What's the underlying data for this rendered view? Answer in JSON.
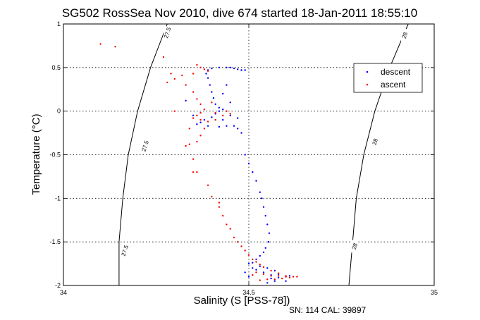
{
  "chart_data": {
    "type": "scatter",
    "title": "SG502 RossSea Nov 2010, dive 674 started 18-Jan-2011 18:55:10",
    "xlabel": "Salinity (S [PSS-78])",
    "ylabel": "Temperature (°C)",
    "xlim": [
      34,
      35
    ],
    "ylim": [
      -2,
      1
    ],
    "x_ticks": [
      34,
      34.5,
      35
    ],
    "x_tick_labels": [
      "34",
      "34.5",
      "35"
    ],
    "y_ticks": [
      -2,
      -1.5,
      -1,
      -0.5,
      0,
      0.5,
      1
    ],
    "y_tick_labels": [
      "-2",
      "-1.5",
      "-1",
      "-0.5",
      "0",
      "0.5",
      "1"
    ],
    "grid": true,
    "legend_position": "top-right",
    "footer": "SN: 114  CAL: 39897",
    "contours": [
      {
        "label": "27.5",
        "points": [
          [
            34.28,
            1.0
          ],
          [
            34.235,
            0.5
          ],
          [
            34.2,
            0.0
          ],
          [
            34.175,
            -0.5
          ],
          [
            34.16,
            -1.0
          ],
          [
            34.15,
            -1.5
          ],
          [
            34.15,
            -2.0
          ]
        ],
        "label_positions": [
          [
            34.28,
            0.9
          ],
          [
            34.22,
            -0.4
          ],
          [
            34.165,
            -1.6
          ]
        ]
      },
      {
        "label": "28",
        "points": [
          [
            34.93,
            1.0
          ],
          [
            34.88,
            0.5
          ],
          [
            34.84,
            0.0
          ],
          [
            34.81,
            -0.5
          ],
          [
            34.79,
            -1.0
          ],
          [
            34.78,
            -1.5
          ],
          [
            34.77,
            -2.0
          ]
        ],
        "label_positions": [
          [
            34.92,
            0.87
          ],
          [
            34.84,
            -0.35
          ],
          [
            34.785,
            -1.55
          ]
        ]
      }
    ],
    "series": [
      {
        "name": "descent",
        "color": "#0000ff",
        "points": [
          [
            34.44,
            0.5
          ],
          [
            34.45,
            0.5
          ],
          [
            34.46,
            0.49
          ],
          [
            34.47,
            0.48
          ],
          [
            34.48,
            0.47
          ],
          [
            34.49,
            0.47
          ],
          [
            34.42,
            0.5
          ],
          [
            34.4,
            0.49
          ],
          [
            34.39,
            0.47
          ],
          [
            34.385,
            0.43
          ],
          [
            34.39,
            0.38
          ],
          [
            34.395,
            0.3
          ],
          [
            34.4,
            0.22
          ],
          [
            34.405,
            0.15
          ],
          [
            34.41,
            0.08
          ],
          [
            34.42,
            0.04
          ],
          [
            34.43,
            0.02
          ],
          [
            34.42,
            0.0
          ],
          [
            34.41,
            -0.03
          ],
          [
            34.4,
            -0.07
          ],
          [
            34.38,
            -0.1
          ],
          [
            34.37,
            -0.13
          ],
          [
            34.39,
            -0.17
          ],
          [
            34.42,
            -0.18
          ],
          [
            34.44,
            -0.17
          ],
          [
            34.46,
            -0.17
          ],
          [
            34.47,
            -0.2
          ],
          [
            34.48,
            -0.25
          ],
          [
            34.47,
            -0.08
          ],
          [
            34.45,
            -0.05
          ],
          [
            34.43,
            -0.1
          ],
          [
            34.49,
            -0.5
          ],
          [
            34.5,
            -0.6
          ],
          [
            34.51,
            -0.7
          ],
          [
            34.52,
            -0.8
          ],
          [
            34.53,
            -0.93
          ],
          [
            34.535,
            -1.0
          ],
          [
            34.54,
            -1.1
          ],
          [
            34.545,
            -1.2
          ],
          [
            34.55,
            -1.3
          ],
          [
            34.555,
            -1.4
          ],
          [
            34.553,
            -1.5
          ],
          [
            34.545,
            -1.57
          ],
          [
            34.54,
            -1.62
          ],
          [
            34.53,
            -1.66
          ],
          [
            34.52,
            -1.7
          ],
          [
            34.51,
            -1.74
          ],
          [
            34.53,
            -1.78
          ],
          [
            34.55,
            -1.8
          ],
          [
            34.57,
            -1.83
          ],
          [
            34.58,
            -1.87
          ],
          [
            34.6,
            -1.9
          ],
          [
            34.56,
            -1.92
          ],
          [
            34.54,
            -1.85
          ],
          [
            34.57,
            -1.95
          ],
          [
            34.55,
            -1.97
          ],
          [
            34.5,
            -1.9
          ],
          [
            34.49,
            -1.85
          ],
          [
            34.5,
            -1.75
          ],
          [
            34.51,
            -1.8
          ],
          [
            34.52,
            -1.82
          ],
          [
            34.56,
            -1.88
          ],
          [
            34.58,
            -1.91
          ],
          [
            34.6,
            -1.95
          ],
          [
            34.61,
            -1.89
          ],
          [
            34.44,
            0.3
          ],
          [
            34.43,
            0.2
          ],
          [
            34.45,
            0.1
          ],
          [
            34.36,
            -0.15
          ],
          [
            34.35,
            -0.05
          ],
          [
            34.33,
            0.12
          ]
        ]
      },
      {
        "name": "ascent",
        "color": "#ff0000",
        "points": [
          [
            34.1,
            0.77
          ],
          [
            34.14,
            0.74
          ],
          [
            34.27,
            0.62
          ],
          [
            34.36,
            0.53
          ],
          [
            34.37,
            0.5
          ],
          [
            34.38,
            0.48
          ],
          [
            34.39,
            0.46
          ],
          [
            34.35,
            0.43
          ],
          [
            34.32,
            0.41
          ],
          [
            34.29,
            0.43
          ],
          [
            34.3,
            0.37
          ],
          [
            34.33,
            0.3
          ],
          [
            34.35,
            0.22
          ],
          [
            34.36,
            0.14
          ],
          [
            34.37,
            0.08
          ],
          [
            34.38,
            0.02
          ],
          [
            34.37,
            -0.02
          ],
          [
            34.36,
            -0.05
          ],
          [
            34.35,
            -0.08
          ],
          [
            34.37,
            -0.1
          ],
          [
            34.39,
            -0.12
          ],
          [
            34.41,
            -0.1
          ],
          [
            34.43,
            -0.05
          ],
          [
            34.44,
            0.0
          ],
          [
            34.45,
            -0.03
          ],
          [
            34.38,
            -0.2
          ],
          [
            34.37,
            -0.28
          ],
          [
            34.36,
            -0.35
          ],
          [
            34.34,
            -0.38
          ],
          [
            34.35,
            -0.7
          ],
          [
            34.39,
            -0.85
          ],
          [
            34.42,
            -1.1
          ],
          [
            34.43,
            -1.2
          ],
          [
            34.44,
            -1.3
          ],
          [
            34.45,
            -1.35
          ],
          [
            34.46,
            -1.45
          ],
          [
            34.47,
            -1.5
          ],
          [
            34.48,
            -1.55
          ],
          [
            34.49,
            -1.6
          ],
          [
            34.5,
            -1.65
          ],
          [
            34.51,
            -1.7
          ],
          [
            34.52,
            -1.73
          ],
          [
            34.53,
            -1.76
          ],
          [
            34.54,
            -1.79
          ],
          [
            34.56,
            -1.83
          ],
          [
            34.58,
            -1.86
          ],
          [
            34.6,
            -1.89
          ],
          [
            34.62,
            -1.9
          ],
          [
            34.63,
            -1.9
          ],
          [
            34.61,
            -1.91
          ],
          [
            34.59,
            -1.92
          ],
          [
            34.57,
            -1.93
          ],
          [
            34.55,
            -1.93
          ],
          [
            34.53,
            -1.94
          ],
          [
            34.51,
            -1.88
          ],
          [
            34.52,
            -1.85
          ],
          [
            34.54,
            -1.87
          ],
          [
            34.56,
            -1.89
          ],
          [
            34.58,
            -1.89
          ],
          [
            34.6,
            -1.9
          ],
          [
            34.35,
            -0.55
          ],
          [
            34.34,
            -0.2
          ],
          [
            34.33,
            -0.4
          ],
          [
            34.28,
            0.33
          ],
          [
            34.3,
            0.0
          ],
          [
            34.4,
            0.1
          ],
          [
            34.41,
            -0.02
          ],
          [
            34.36,
            -0.7
          ],
          [
            34.4,
            -0.98
          ],
          [
            34.42,
            -1.05
          ]
        ]
      }
    ]
  }
}
